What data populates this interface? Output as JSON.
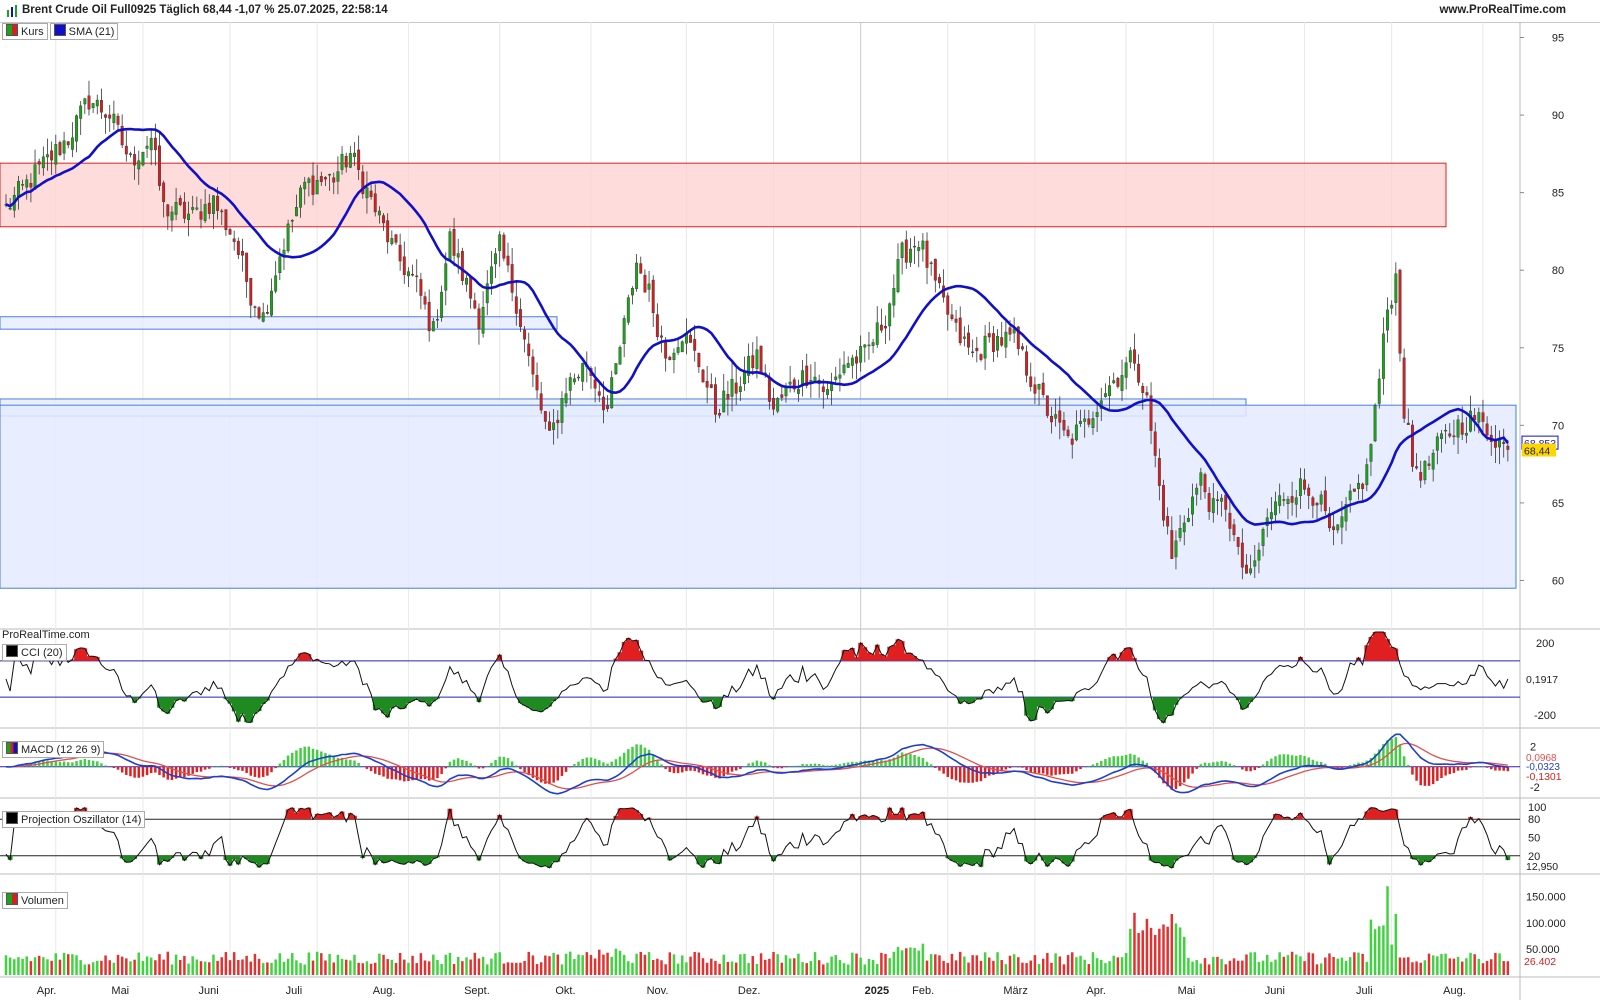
{
  "header": {
    "title": "Brent Crude Oil Full0925 Täglich 68,44 -1,07 % 25.07.2025, 22:58:14",
    "site": "www.ProRealTime.com"
  },
  "watermark": "ProRealTime.com",
  "colors": {
    "up": "#19a419",
    "down": "#d42020",
    "sma": "#1010c8",
    "resistance_zone": "#ffd0d0",
    "support_zone": "#e4ebff",
    "price_label_bg": "#ffd700"
  },
  "price_panel": {
    "legend": [
      {
        "label": "Kurs",
        "icon": "candlestick-icon"
      },
      {
        "label": "SMA (21)",
        "icon": "square-icon"
      }
    ],
    "y_ticks": [
      "95",
      "90",
      "85",
      "80",
      "75",
      "70",
      "65",
      "60"
    ],
    "sma_last": "68,853",
    "price_last": "68,44"
  },
  "cci_panel": {
    "legend": "CCI (20)",
    "y_ticks": [
      "200",
      "-200"
    ],
    "last_value": "0,1917"
  },
  "macd_panel": {
    "legend": "MACD (12 26 9)",
    "y_ticks": [
      "2",
      "-2"
    ],
    "values": [
      "0,0968",
      "-0,0323",
      "-0,1301"
    ]
  },
  "po_panel": {
    "legend": "Projection Oszillator (14)",
    "y_ticks": [
      "100",
      "80",
      "50",
      "20"
    ],
    "last_value": "12,950"
  },
  "volume_panel": {
    "legend": "Volumen",
    "y_ticks": [
      "150.000",
      "100.000",
      "50.000"
    ],
    "last_value": "26.402"
  },
  "x_axis": {
    "labels": [
      "Apr.",
      "Mai",
      "Juni",
      "Juli",
      "Aug.",
      "Sept.",
      "Okt.",
      "Nov.",
      "Dez.",
      "2025",
      "Feb.",
      "März",
      "Apr.",
      "Mai",
      "Juni",
      "Juli",
      "Aug."
    ]
  },
  "chart_data": {
    "type": "candlestick",
    "title": "Brent Crude Oil Full0925 Täglich",
    "period": "2024-03 to 2025-07-25",
    "ylim": [
      57,
      96
    ],
    "price_anchors": [
      [
        0,
        84
      ],
      [
        8,
        86.5
      ],
      [
        15,
        88.5
      ],
      [
        20,
        91
      ],
      [
        25,
        90
      ],
      [
        30,
        87
      ],
      [
        35,
        88.5
      ],
      [
        38,
        84
      ],
      [
        45,
        83.5
      ],
      [
        50,
        84.5
      ],
      [
        55,
        82
      ],
      [
        59,
        78.5
      ],
      [
        62,
        77
      ],
      [
        66,
        81
      ],
      [
        72,
        85.5
      ],
      [
        79,
        86
      ],
      [
        83,
        87.5
      ],
      [
        88,
        84.5
      ],
      [
        94,
        81
      ],
      [
        99,
        79
      ],
      [
        103,
        76
      ],
      [
        107,
        82
      ],
      [
        111,
        79
      ],
      [
        114,
        77
      ],
      [
        119,
        81.5
      ],
      [
        123,
        78
      ],
      [
        127,
        73
      ],
      [
        131,
        69
      ],
      [
        135,
        72.5
      ],
      [
        140,
        74
      ],
      [
        145,
        71
      ],
      [
        148,
        75
      ],
      [
        152,
        80.5
      ],
      [
        155,
        78.5
      ],
      [
        159,
        74.5
      ],
      [
        163,
        76
      ],
      [
        167,
        74
      ],
      [
        171,
        71
      ],
      [
        176,
        72.5
      ],
      [
        181,
        74.5
      ],
      [
        185,
        71
      ],
      [
        189,
        72.5
      ],
      [
        194,
        73.5
      ],
      [
        198,
        72
      ],
      [
        202,
        74
      ],
      [
        207,
        74.5
      ],
      [
        212,
        77
      ],
      [
        216,
        81
      ],
      [
        220,
        82
      ],
      [
        224,
        79
      ],
      [
        229,
        76
      ],
      [
        233,
        74.5
      ],
      [
        238,
        75.5
      ],
      [
        243,
        75.5
      ],
      [
        248,
        72.5
      ],
      [
        252,
        70.5
      ],
      [
        256,
        69
      ],
      [
        260,
        70
      ],
      [
        264,
        72
      ],
      [
        269,
        73.5
      ],
      [
        272,
        74.5
      ],
      [
        275,
        71.5
      ],
      [
        278,
        66
      ],
      [
        281,
        61.5
      ],
      [
        284,
        64
      ],
      [
        288,
        66.5
      ],
      [
        291,
        64.5
      ],
      [
        294,
        65
      ],
      [
        297,
        61.5
      ],
      [
        300,
        60
      ],
      [
        304,
        64
      ],
      [
        308,
        65.5
      ],
      [
        312,
        66
      ],
      [
        316,
        65.5
      ],
      [
        320,
        62.5
      ],
      [
        324,
        65
      ],
      [
        328,
        67
      ],
      [
        331,
        73
      ],
      [
        333,
        77.5
      ],
      [
        335,
        79.5
      ],
      [
        337,
        71
      ],
      [
        339,
        67.5
      ],
      [
        342,
        67
      ],
      [
        346,
        69
      ],
      [
        350,
        70
      ],
      [
        354,
        70.5
      ],
      [
        358,
        69.5
      ],
      [
        362,
        68.44
      ]
    ],
    "sma_period": 21,
    "sma_last": 68.853,
    "last_close": 68.44,
    "last_change_pct": -1.07,
    "zones": [
      {
        "kind": "resistance",
        "from": 82.8,
        "to": 86.9
      },
      {
        "kind": "support",
        "from": 76.2,
        "to": 77.0
      },
      {
        "kind": "support",
        "from": 70.6,
        "to": 71.7
      },
      {
        "kind": "support-area",
        "from": 59.5,
        "to": 71.3
      }
    ],
    "indicators": {
      "cci": {
        "period": 20,
        "upper": 100,
        "lower": -100,
        "last": 0.1917
      },
      "macd": {
        "fast": 12,
        "slow": 26,
        "signal": 9,
        "last_macd": -0.0323,
        "last_signal": 0.0968,
        "last_hist": -0.1301
      },
      "projection_oscillator": {
        "period": 14,
        "upper": 80,
        "lower": 20,
        "last": 12.95
      },
      "volume": {
        "last": 26402,
        "max_tick": 150000
      }
    }
  }
}
